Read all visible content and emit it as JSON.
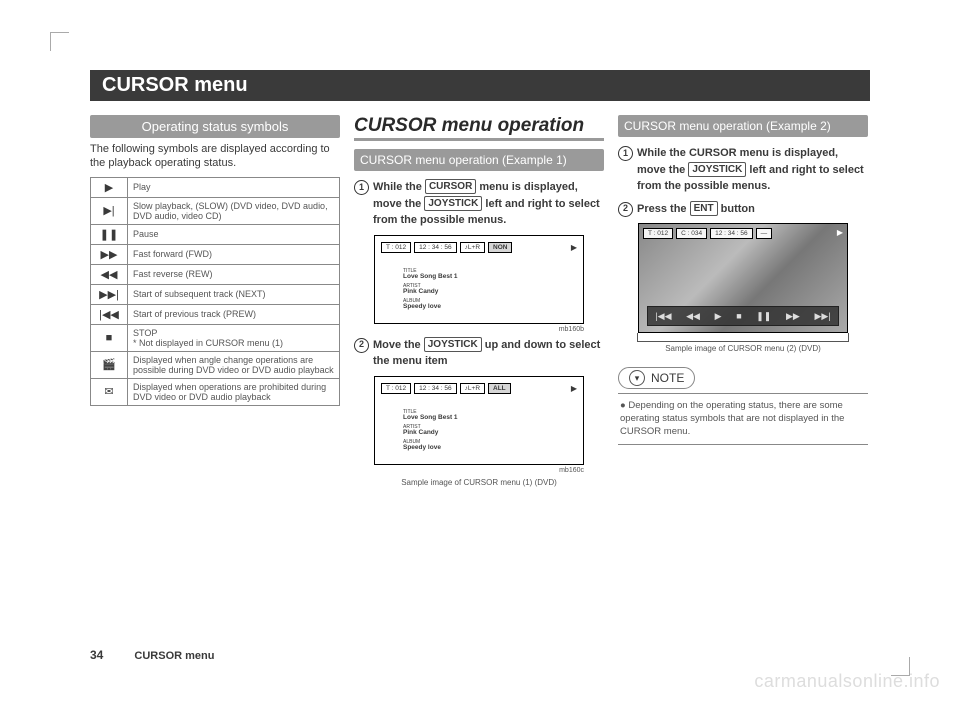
{
  "page": {
    "title": "CURSOR menu",
    "number": "34",
    "footer": "CURSOR  menu",
    "watermark": "carmanualsonline.info"
  },
  "col1": {
    "heading": "Operating status symbols",
    "intro": "The following symbols are displayed according to the playback operating status.",
    "rows": [
      {
        "icon": "▶",
        "text": "Play"
      },
      {
        "icon": "▶|",
        "text": "Slow playback, (SLOW) (DVD video, DVD audio, DVD audio, video CD)"
      },
      {
        "icon": "❚❚",
        "text": "Pause"
      },
      {
        "icon": "▶▶",
        "text": "Fast forward (FWD)"
      },
      {
        "icon": "◀◀",
        "text": "Fast reverse (REW)"
      },
      {
        "icon": "▶▶|",
        "text": "Start of subsequent track (NEXT)"
      },
      {
        "icon": "|◀◀",
        "text": "Start of previous track (PREW)"
      },
      {
        "icon": "■",
        "text": "STOP\n* Not displayed in CURSOR menu (1)"
      },
      {
        "icon": "🎬",
        "text": "Displayed when angle change operations are possible during DVD video or DVD audio playback"
      },
      {
        "icon": "✉",
        "text": "Displayed when operations are prohibited during DVD video or DVD audio playback"
      }
    ]
  },
  "col2": {
    "section": "CURSOR menu operation",
    "sub": "CURSOR menu operation (Example 1)",
    "step1a": "While the ",
    "step1_key1": "CURSOR",
    "step1b": " menu is displayed, move the ",
    "step1_key2": "JOYSTICK",
    "step1c": " left and right to select from the possible menus.",
    "screen1": {
      "chips": [
        "T : 012",
        "12 : 34 : 56",
        "♪L+R"
      ],
      "end": "NON",
      "t1": "Love Song Best 1",
      "t2": "Pink Candy",
      "t3": "Speedy love",
      "label": "mb160b"
    },
    "step2a": "Move the ",
    "step2_key": "JOYSTICK",
    "step2b": " up and down to select the menu item",
    "screen2": {
      "chips": [
        "T : 012",
        "12 : 34 : 56",
        "♪L+R"
      ],
      "end": "ALL",
      "t1": "Love Song Best 1",
      "t2": "Pink Candy",
      "t3": "Speedy love",
      "label": "mb160c",
      "caption": "Sample image of CURSOR menu (1) (DVD)"
    }
  },
  "col3": {
    "sub": "CURSOR menu operation (Example 2)",
    "step1a": "While the CURSOR menu is displayed, move the ",
    "step1_key": "JOYSTICK",
    "step1b": " left and right to select from the possible menus.",
    "step2a": "Press the ",
    "step2_key": "ENT",
    "step2b": " button",
    "dvd": {
      "chips": [
        "T : 012",
        "C : 034",
        "12 : 34 : 56",
        "—"
      ],
      "caption": "Sample image of CURSOR menu (2) (DVD)"
    },
    "note": {
      "title": "NOTE",
      "body": "Depending on the operating status, there are some operating status symbols that are not displayed in the CURSOR menu."
    }
  }
}
